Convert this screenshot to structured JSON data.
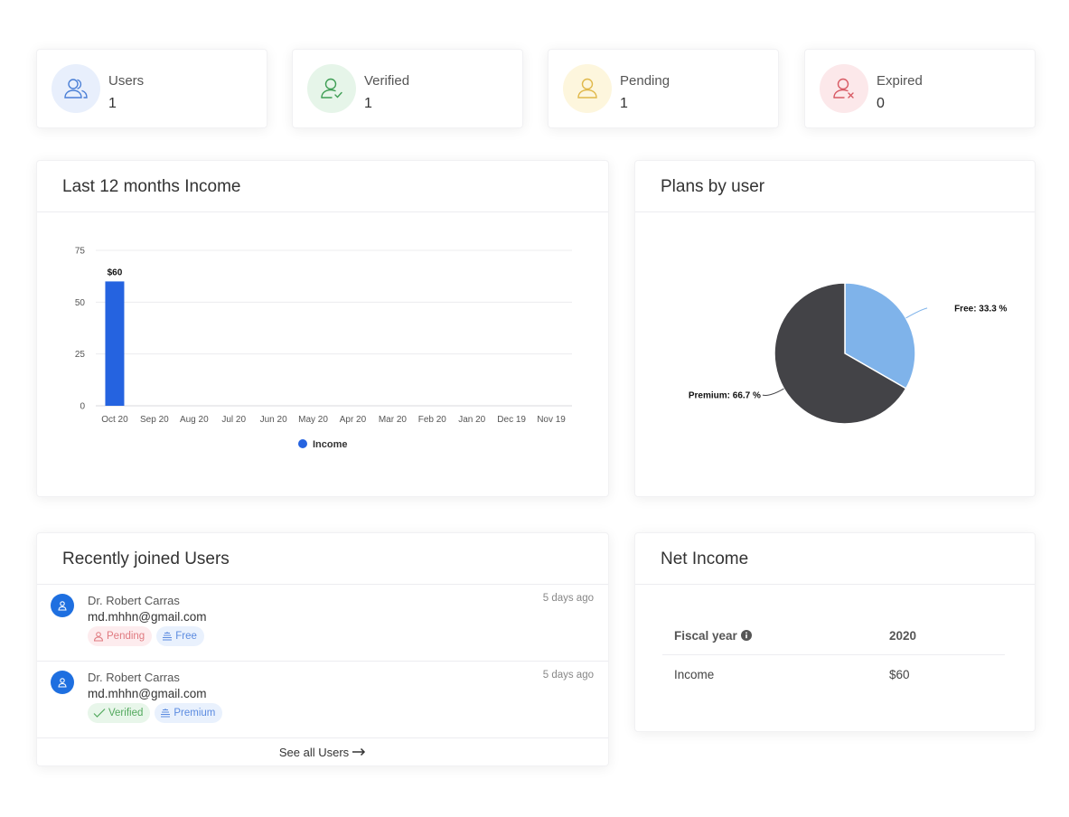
{
  "stats": [
    {
      "label": "Users",
      "value": "1",
      "icon": "users-icon",
      "color": "#4a7fd6",
      "bg": "#e8effc"
    },
    {
      "label": "Verified",
      "value": "1",
      "icon": "user-check-icon",
      "color": "#3f9e55",
      "bg": "#e6f5e9"
    },
    {
      "label": "Pending",
      "value": "1",
      "icon": "user-icon",
      "color": "#e0b84a",
      "bg": "#fdf6dd"
    },
    {
      "label": "Expired",
      "value": "0",
      "icon": "user-x-icon",
      "color": "#d85a64",
      "bg": "#fce8ea"
    }
  ],
  "income_card": {
    "title": "Last 12 months Income"
  },
  "plans_card": {
    "title": "Plans by user"
  },
  "users_card": {
    "title": "Recently joined Users",
    "users": [
      {
        "name": "Dr. Robert Carras",
        "email": "md.mhhn@gmail.com",
        "time": "5 days ago",
        "status": "Pending",
        "plan": "Free"
      },
      {
        "name": "Dr. Robert Carras",
        "email": "md.mhhn@gmail.com",
        "time": "5 days ago",
        "status": "Verified",
        "plan": "Premium"
      }
    ],
    "see_all": "See all Users"
  },
  "net_income": {
    "title": "Net Income",
    "header": {
      "label": "Fiscal year",
      "value": "2020"
    },
    "row": {
      "label": "Income",
      "value": "$60"
    }
  },
  "chart_data": [
    {
      "type": "bar",
      "categories": [
        "Oct 20",
        "Sep 20",
        "Aug 20",
        "Jul 20",
        "Jun 20",
        "May 20",
        "Apr 20",
        "Mar 20",
        "Feb 20",
        "Jan 20",
        "Dec 19",
        "Nov 19"
      ],
      "series": [
        {
          "name": "Income",
          "values": [
            60,
            0,
            0,
            0,
            0,
            0,
            0,
            0,
            0,
            0,
            0,
            0
          ],
          "color": "#2563e0"
        }
      ],
      "data_labels": [
        "$60",
        "",
        "",
        "",
        "",
        "",
        "",
        "",
        "",
        "",
        "",
        ""
      ],
      "yticks": [
        0,
        25,
        50,
        75
      ],
      "ylim": [
        0,
        75
      ],
      "grid": true,
      "legend": "bottom"
    },
    {
      "type": "pie",
      "slices": [
        {
          "label": "Free",
          "value": 33.3,
          "display": "Free: 33.3 %",
          "color": "#7fb3ea"
        },
        {
          "label": "Premium",
          "value": 66.7,
          "display": "Premium: 66.7 %",
          "color": "#434347"
        }
      ]
    }
  ]
}
